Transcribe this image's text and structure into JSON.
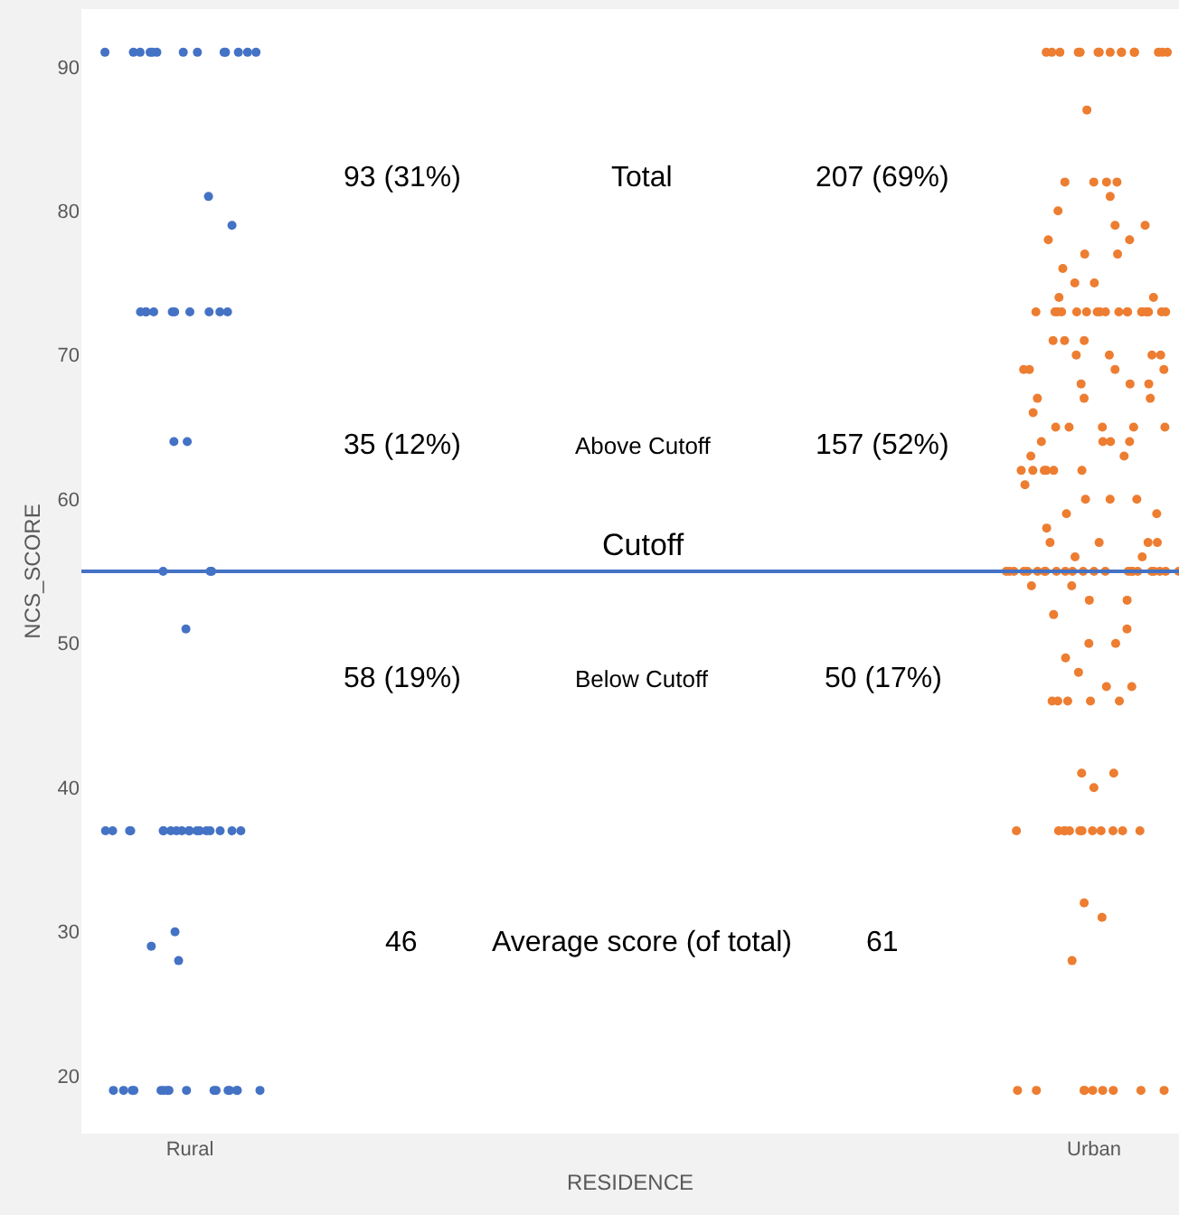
{
  "chart_data": {
    "type": "scatter",
    "xlabel": "RESIDENCE",
    "ylabel": "NCS_SCORE",
    "categories": [
      "Rural",
      "Urban"
    ],
    "ylim": [
      16,
      94
    ],
    "yticks": [
      20,
      30,
      40,
      50,
      60,
      70,
      80,
      90
    ],
    "marker": "circle",
    "series": [
      {
        "color": "#4472c4",
        "x": [
          "Rural",
          "Rural",
          "Rural",
          "Rural",
          "Rural",
          "Rural",
          "Rural",
          "Rural",
          "Rural",
          "Rural",
          "Rural",
          "Rural",
          "Rural",
          "Rural",
          "Rural",
          "Rural",
          "Rural",
          "Rural",
          "Rural",
          "Rural",
          "Rural",
          "Rural",
          "Rural",
          "Rural",
          "Rural",
          "Rural",
          "Rural",
          "Rural",
          "Rural",
          "Rural",
          "Rural",
          "Rural",
          "Rural",
          "Rural",
          "Rural",
          "Rural",
          "Rural",
          "Rural",
          "Rural",
          "Rural",
          "Rural",
          "Rural",
          "Rural",
          "Rural",
          "Rural",
          "Rural",
          "Rural",
          "Rural",
          "Rural",
          "Rural",
          "Rural",
          "Rural",
          "Rural",
          "Rural",
          "Rural",
          "Rural",
          "Rural",
          "Rural",
          "Rural",
          "Rural",
          "Rural",
          "Rural",
          "Rural",
          "Rural",
          "Rural",
          "Rural",
          "Rural",
          "Rural"
        ],
        "values": [
          91,
          91,
          91,
          91,
          91,
          91,
          91,
          91,
          91,
          91,
          91,
          91,
          91,
          81,
          79,
          73,
          73,
          73,
          73,
          73,
          73,
          73,
          73,
          73,
          73,
          64,
          64,
          55,
          55,
          55,
          51,
          37,
          37,
          37,
          37,
          37,
          37,
          37,
          37,
          37,
          37,
          37,
          37,
          37,
          37,
          37,
          37,
          37,
          37,
          30,
          29,
          28,
          19,
          19,
          19,
          19,
          19,
          19,
          19,
          19,
          19,
          19,
          19,
          19,
          19,
          19,
          19,
          19
        ]
      },
      {
        "color": "#ed7d31",
        "x": [
          "Urban",
          "Urban",
          "Urban",
          "Urban",
          "Urban",
          "Urban",
          "Urban",
          "Urban",
          "Urban",
          "Urban",
          "Urban",
          "Urban",
          "Urban",
          "Urban",
          "Urban",
          "Urban",
          "Urban",
          "Urban",
          "Urban",
          "Urban",
          "Urban",
          "Urban",
          "Urban",
          "Urban",
          "Urban",
          "Urban",
          "Urban",
          "Urban",
          "Urban",
          "Urban",
          "Urban",
          "Urban",
          "Urban",
          "Urban",
          "Urban",
          "Urban",
          "Urban",
          "Urban",
          "Urban",
          "Urban",
          "Urban",
          "Urban",
          "Urban",
          "Urban",
          "Urban",
          "Urban",
          "Urban",
          "Urban",
          "Urban",
          "Urban",
          "Urban",
          "Urban",
          "Urban",
          "Urban",
          "Urban",
          "Urban",
          "Urban",
          "Urban",
          "Urban",
          "Urban",
          "Urban",
          "Urban",
          "Urban",
          "Urban",
          "Urban",
          "Urban",
          "Urban",
          "Urban",
          "Urban",
          "Urban",
          "Urban",
          "Urban",
          "Urban",
          "Urban",
          "Urban",
          "Urban",
          "Urban",
          "Urban",
          "Urban",
          "Urban",
          "Urban",
          "Urban",
          "Urban",
          "Urban",
          "Urban",
          "Urban",
          "Urban",
          "Urban",
          "Urban",
          "Urban",
          "Urban",
          "Urban",
          "Urban",
          "Urban",
          "Urban",
          "Urban",
          "Urban",
          "Urban",
          "Urban",
          "Urban",
          "Urban",
          "Urban",
          "Urban",
          "Urban",
          "Urban",
          "Urban",
          "Urban",
          "Urban",
          "Urban",
          "Urban",
          "Urban",
          "Urban",
          "Urban",
          "Urban",
          "Urban",
          "Urban",
          "Urban",
          "Urban",
          "Urban",
          "Urban",
          "Urban",
          "Urban",
          "Urban",
          "Urban",
          "Urban",
          "Urban",
          "Urban",
          "Urban",
          "Urban",
          "Urban",
          "Urban",
          "Urban",
          "Urban",
          "Urban",
          "Urban",
          "Urban",
          "Urban",
          "Urban",
          "Urban",
          "Urban",
          "Urban",
          "Urban",
          "Urban",
          "Urban",
          "Urban",
          "Urban",
          "Urban",
          "Urban",
          "Urban",
          "Urban",
          "Urban",
          "Urban",
          "Urban",
          "Urban",
          "Urban",
          "Urban",
          "Urban",
          "Urban",
          "Urban",
          "Urban",
          "Urban",
          "Urban",
          "Urban",
          "Urban",
          "Urban",
          "Urban",
          "Urban"
        ],
        "values": [
          91,
          91,
          91,
          91,
          91,
          91,
          91,
          91,
          91,
          91,
          91,
          91,
          91,
          91,
          91,
          87,
          82,
          82,
          82,
          82,
          81,
          80,
          79,
          79,
          78,
          78,
          77,
          77,
          76,
          75,
          75,
          74,
          74,
          73,
          73,
          73,
          73,
          73,
          73,
          73,
          73,
          73,
          73,
          73,
          73,
          73,
          73,
          73,
          73,
          73,
          73,
          73,
          71,
          71,
          71,
          70,
          70,
          70,
          70,
          69,
          69,
          69,
          69,
          68,
          68,
          68,
          67,
          67,
          67,
          66,
          65,
          65,
          65,
          65,
          65,
          64,
          64,
          64,
          64,
          63,
          63,
          62,
          62,
          62,
          62,
          62,
          62,
          61,
          60,
          60,
          60,
          59,
          59,
          58,
          57,
          57,
          57,
          57,
          56,
          56,
          55,
          55,
          55,
          55,
          55,
          55,
          55,
          55,
          55,
          55,
          55,
          55,
          55,
          55,
          55,
          55,
          55,
          55,
          55,
          55,
          55,
          55,
          55,
          54,
          54,
          53,
          53,
          52,
          51,
          50,
          50,
          49,
          48,
          47,
          47,
          46,
          46,
          46,
          46,
          46,
          41,
          41,
          40,
          37,
          37,
          37,
          37,
          37,
          37,
          37,
          37,
          37,
          37,
          37,
          37,
          32,
          31,
          28,
          19,
          19,
          19,
          19,
          19,
          19,
          19,
          19,
          19
        ]
      }
    ],
    "ref_lines": [
      {
        "axis": "y",
        "value": 55,
        "label": "Cutoff",
        "color": "#4472c4"
      }
    ],
    "annotations": [
      "93 (31%)",
      "Total",
      "207 (69%)",
      "35 (12%)",
      "Above Cutoff",
      "157 (52%)",
      "58 (19%)",
      "Below Cutoff",
      "50 (17%)",
      "46",
      "Average score (of total)",
      "61"
    ]
  }
}
